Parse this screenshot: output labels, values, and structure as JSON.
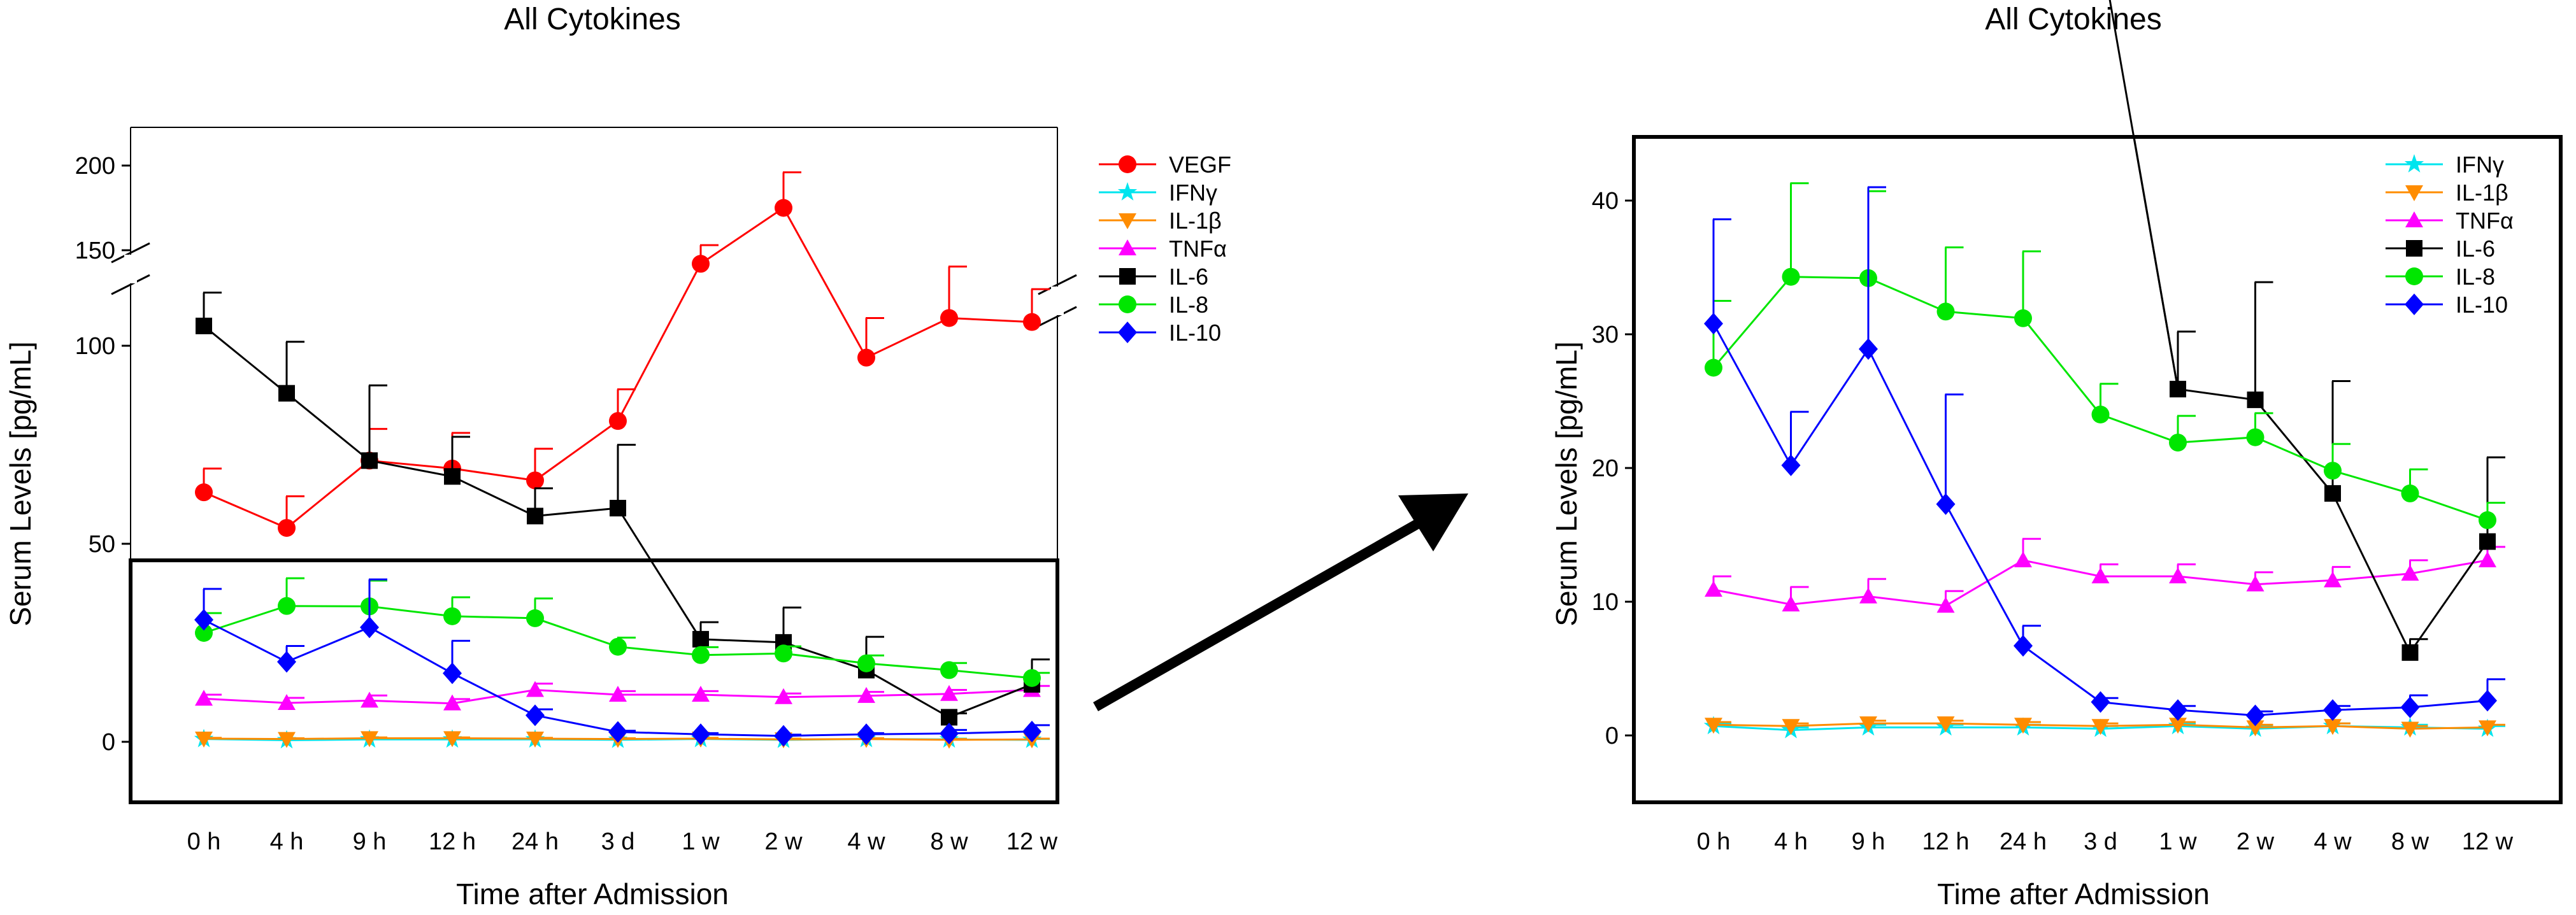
{
  "chart_data": [
    {
      "type": "line",
      "title": "All Cytokines",
      "xlabel": "Time after Admission",
      "ylabel": "Serum Levels [pg/mL]",
      "categories": [
        "0 h",
        "4 h",
        "9 h",
        "12 h",
        "24 h",
        "3 d",
        "1 w",
        "2 w",
        "4 w",
        "8 w",
        "12 w"
      ],
      "y_axis": {
        "broken": true,
        "lower_segment": [
          -15,
          205
        ],
        "upper_segment": [
          140,
          205
        ],
        "yticks": [
          0,
          50,
          100,
          150,
          200
        ]
      },
      "error_bars": "upper",
      "series": [
        {
          "name": "VEGF",
          "color": "#ff0000",
          "marker": "circle",
          "values": [
            63,
            54,
            71,
            69,
            66,
            81,
            142,
            175,
            97,
            107,
            106
          ],
          "err": [
            6,
            8,
            8,
            9,
            8,
            8,
            11,
            21,
            10,
            13,
            21
          ]
        },
        {
          "name": "IFNγ",
          "color": "#00e5ee",
          "marker": "star",
          "values": [
            0.7,
            0.4,
            0.6,
            0.6,
            0.6,
            0.5,
            0.7,
            0.5,
            0.7,
            0.6,
            0.5
          ],
          "err": [
            0.2,
            0.2,
            0.2,
            0.2,
            0.2,
            0.2,
            0.2,
            0.2,
            0.2,
            0.2,
            0.2
          ]
        },
        {
          "name": "IL-1β",
          "color": "#ff8c00",
          "marker": "triangle-down",
          "values": [
            0.8,
            0.7,
            0.9,
            0.9,
            0.8,
            0.7,
            0.8,
            0.6,
            0.7,
            0.5,
            0.6
          ],
          "err": [
            0.2,
            0.2,
            0.2,
            0.2,
            0.2,
            0.2,
            0.2,
            0.2,
            0.2,
            0.2,
            0.2
          ]
        },
        {
          "name": "TNFα",
          "color": "#ff00ff",
          "marker": "triangle-up",
          "values": [
            10.9,
            9.8,
            10.4,
            9.7,
            13.1,
            11.9,
            11.9,
            11.3,
            11.6,
            12.1,
            13.1
          ],
          "err": [
            1.0,
            1.3,
            1.3,
            1.1,
            1.6,
            0.9,
            0.9,
            0.9,
            1.0,
            1.0,
            1.0
          ]
        },
        {
          "name": "IL-6",
          "color": "#000000",
          "marker": "square",
          "values": [
            105,
            88,
            71,
            67,
            57,
            59,
            25.9,
            25.1,
            18.1,
            6.2,
            14.5
          ],
          "err": [
            20,
            13,
            19,
            10,
            7,
            16,
            4.3,
            8.8,
            8.4,
            1.0,
            6.3
          ]
        },
        {
          "name": "IL-8",
          "color": "#00e600",
          "marker": "circle",
          "values": [
            27.5,
            34.3,
            34.2,
            31.7,
            31.2,
            24.0,
            21.9,
            22.3,
            19.8,
            18.1,
            16.1
          ],
          "err": [
            5.0,
            7.0,
            6.5,
            4.8,
            5.0,
            2.3,
            2.0,
            1.8,
            2.0,
            1.8,
            1.3
          ]
        },
        {
          "name": "IL-10",
          "color": "#0000ff",
          "marker": "diamond",
          "values": [
            30.8,
            20.2,
            28.9,
            17.3,
            6.7,
            2.5,
            1.9,
            1.5,
            1.9,
            2.1,
            2.6
          ],
          "err": [
            7.8,
            4.0,
            12.1,
            8.2,
            1.5,
            0.3,
            0.3,
            0.3,
            0.3,
            0.9,
            1.6
          ]
        }
      ]
    },
    {
      "type": "line",
      "title": "All Cytokines",
      "xlabel": "Time after Admission",
      "ylabel": "Serum Levels [pg/mL]",
      "categories": [
        "0 h",
        "4 h",
        "9 h",
        "12 h",
        "24 h",
        "3 d",
        "1 w",
        "2 w",
        "4 w",
        "8 w",
        "12 w"
      ],
      "ylim": [
        -5,
        45
      ],
      "yticks": [
        0,
        10,
        20,
        30,
        40
      ],
      "error_bars": "upper",
      "series": [
        {
          "name": "IFNγ",
          "color": "#00e5ee",
          "marker": "star",
          "values": [
            0.7,
            0.4,
            0.6,
            0.6,
            0.6,
            0.5,
            0.7,
            0.5,
            0.7,
            0.6,
            0.5
          ],
          "err": [
            0.2,
            0.2,
            0.2,
            0.2,
            0.2,
            0.2,
            0.2,
            0.2,
            0.2,
            0.2,
            0.2
          ]
        },
        {
          "name": "IL-1β",
          "color": "#ff8c00",
          "marker": "triangle-down",
          "values": [
            0.8,
            0.7,
            0.9,
            0.9,
            0.8,
            0.7,
            0.8,
            0.6,
            0.7,
            0.5,
            0.6
          ],
          "err": [
            0.2,
            0.2,
            0.2,
            0.2,
            0.2,
            0.2,
            0.2,
            0.2,
            0.2,
            0.2,
            0.2
          ]
        },
        {
          "name": "TNFα",
          "color": "#ff00ff",
          "marker": "triangle-up",
          "values": [
            10.9,
            9.8,
            10.4,
            9.7,
            13.1,
            11.9,
            11.9,
            11.3,
            11.6,
            12.1,
            13.1
          ],
          "err": [
            1.0,
            1.3,
            1.3,
            1.1,
            1.6,
            0.9,
            0.9,
            0.9,
            1.0,
            1.0,
            1.0
          ]
        },
        {
          "name": "IL-6",
          "color": "#000000",
          "marker": "square",
          "values": [
            null,
            null,
            null,
            null,
            null,
            59,
            25.9,
            25.1,
            18.1,
            6.2,
            14.5
          ],
          "err": [
            null,
            null,
            null,
            null,
            null,
            null,
            4.3,
            8.8,
            8.4,
            1.0,
            6.3
          ]
        },
        {
          "name": "IL-8",
          "color": "#00e600",
          "marker": "circle",
          "values": [
            27.5,
            34.3,
            34.2,
            31.7,
            31.2,
            24.0,
            21.9,
            22.3,
            19.8,
            18.1,
            16.1
          ],
          "err": [
            5.0,
            7.0,
            6.5,
            4.8,
            5.0,
            2.3,
            2.0,
            1.8,
            2.0,
            1.8,
            1.3
          ]
        },
        {
          "name": "IL-10",
          "color": "#0000ff",
          "marker": "diamond",
          "values": [
            30.8,
            20.2,
            28.9,
            17.3,
            6.7,
            2.5,
            1.9,
            1.5,
            1.9,
            2.1,
            2.6
          ],
          "err": [
            7.8,
            4.0,
            12.1,
            8.2,
            1.5,
            0.3,
            0.3,
            0.3,
            0.3,
            0.9,
            1.6
          ]
        }
      ]
    }
  ]
}
